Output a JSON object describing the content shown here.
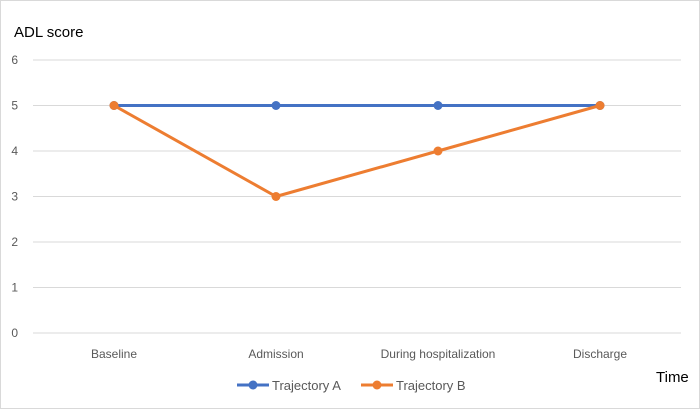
{
  "chart_data": {
    "type": "line",
    "ylabel": "ADL score",
    "xlabel": "Time",
    "categories": [
      "Baseline",
      "Admission",
      "During hospitalization",
      "Discharge"
    ],
    "yticks": [
      0,
      1,
      2,
      3,
      4,
      5,
      6
    ],
    "ylim": [
      0,
      6
    ],
    "grid": true,
    "legend_position": "bottom",
    "series": [
      {
        "name": "Trajectory A",
        "values": [
          5,
          5,
          5,
          5
        ],
        "color": "#4472c4"
      },
      {
        "name": "Trajectory B",
        "values": [
          5,
          3,
          4,
          5
        ],
        "color": "#ed7d31"
      }
    ]
  }
}
